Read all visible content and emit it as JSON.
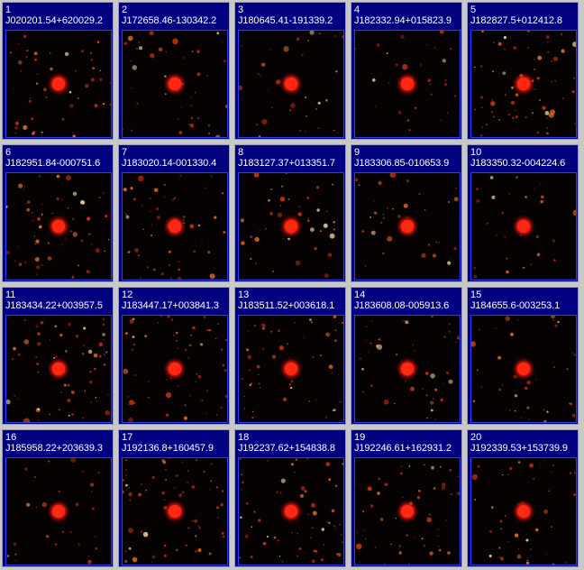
{
  "page": {
    "background": "#c8c8c8",
    "panel_color": "#000080",
    "frame_color": "#2a3cff"
  },
  "tiles": [
    {
      "index": "1",
      "name": "J020201.54+620029.2"
    },
    {
      "index": "2",
      "name": "J172658.46-130342.2"
    },
    {
      "index": "3",
      "name": "J180645.41-191339.2"
    },
    {
      "index": "4",
      "name": "J182332.94+015823.9"
    },
    {
      "index": "5",
      "name": "J182827.5+012412.8"
    },
    {
      "index": "6",
      "name": "J182951.84-000751.6"
    },
    {
      "index": "7",
      "name": "J183020.14-001330.4"
    },
    {
      "index": "8",
      "name": "J183127.37+013351.7"
    },
    {
      "index": "9",
      "name": "J183306.85-010653.9"
    },
    {
      "index": "10",
      "name": "J183350.32-004224.6"
    },
    {
      "index": "11",
      "name": "J183434.22+003957.5"
    },
    {
      "index": "12",
      "name": "J183447.17+003841.3"
    },
    {
      "index": "13",
      "name": "J183511.52+003618.1"
    },
    {
      "index": "14",
      "name": "J183608.08-005913.6"
    },
    {
      "index": "15",
      "name": "J184655.6-003253.1"
    },
    {
      "index": "16",
      "name": "J185958.22+203639.3"
    },
    {
      "index": "17",
      "name": "J192136.8+160457.9"
    },
    {
      "index": "18",
      "name": "J192237.62+154838.8"
    },
    {
      "index": "19",
      "name": "J192246.61+162931.2"
    },
    {
      "index": "20",
      "name": "J192339.53+153739.9"
    }
  ]
}
